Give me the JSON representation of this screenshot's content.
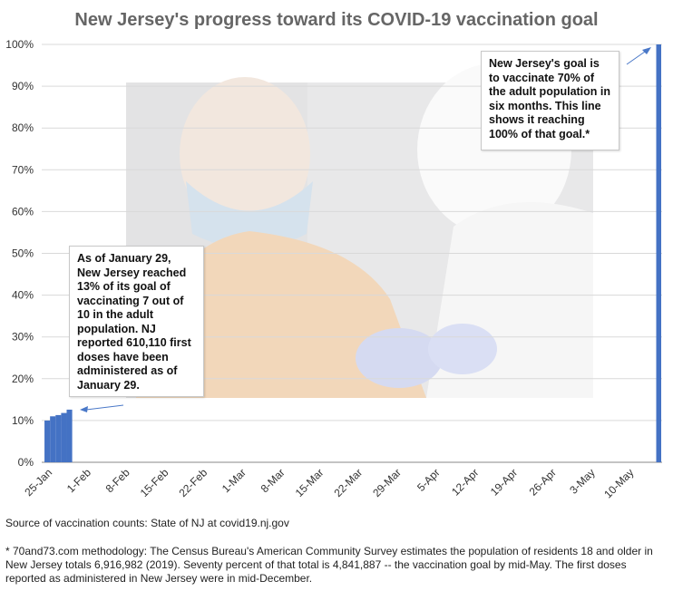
{
  "chart_data": {
    "type": "bar",
    "title": "New Jersey's progress toward its COVID-19 vaccination goal",
    "xlabel": "",
    "ylabel": "",
    "ylim": [
      0,
      100
    ],
    "y_ticks": [
      "0%",
      "10%",
      "20%",
      "30%",
      "40%",
      "50%",
      "60%",
      "70%",
      "80%",
      "90%",
      "100%"
    ],
    "x_ticks": [
      "25-Jan",
      "1-Feb",
      "8-Feb",
      "15-Feb",
      "22-Feb",
      "1-Mar",
      "8-Mar",
      "15-Mar",
      "22-Mar",
      "29-Mar",
      "5-Apr",
      "12-Apr",
      "19-Apr",
      "26-Apr",
      "3-May",
      "10-May"
    ],
    "x_range": [
      "2021-01-24",
      "2021-05-16"
    ],
    "grid": true,
    "bar_color": "#4472c4",
    "points": [
      {
        "date": "2021-01-25",
        "value": 10.0
      },
      {
        "date": "2021-01-26",
        "value": 11.0
      },
      {
        "date": "2021-01-27",
        "value": 11.3
      },
      {
        "date": "2021-01-28",
        "value": 11.8
      },
      {
        "date": "2021-01-29",
        "value": 12.6
      },
      {
        "date": "2021-05-15",
        "value": 100
      }
    ],
    "annotations": [
      "As of January 29, New Jersey reached 13% of its goal of vaccinating 7 out of 10 in the adult population. NJ reported 610,110 first doses have been administered as of January 29.",
      "New Jersey's goal is to vaccinate 70% of the adult population in six months. This line shows it reaching 100% of that goal.*"
    ]
  },
  "footer": {
    "source": "Source of vaccination counts: State of NJ at covid19.nj.gov",
    "methodology": "* 70and73.com methodology: The Census Bureau's American Community Survey estimates the population of residents 18 and older in New Jersey totals 6,916,982 (2019). Seventy percent of that total is 4,841,887 -- the vaccination goal by mid-May. The first doses reported as administered in New Jersey were in mid-December."
  }
}
